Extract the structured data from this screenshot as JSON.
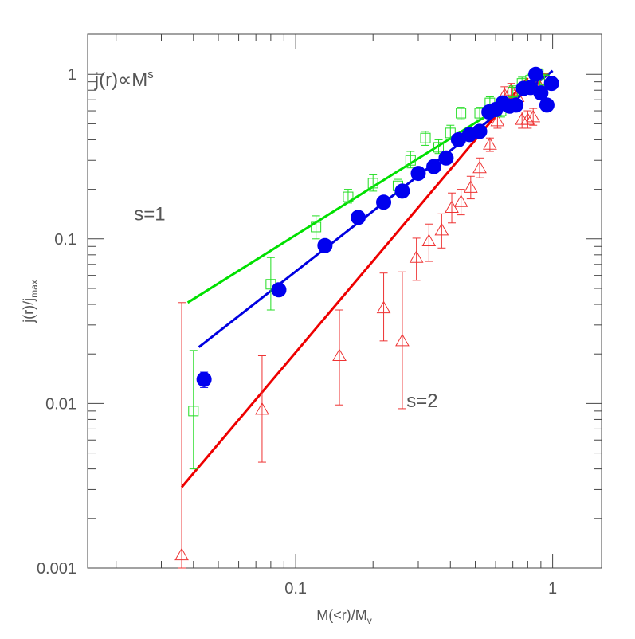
{
  "chart_data": {
    "type": "scatter",
    "xscale": "log",
    "yscale": "log",
    "xlim": [
      0.0155,
      1.55
    ],
    "ylim": [
      0.001,
      1.75
    ],
    "xlabel": {
      "main": "M(<r)/M",
      "sub": "v"
    },
    "ylabel": {
      "main": "j(r)/j",
      "sub": "max"
    },
    "x_tick_labels": [
      {
        "value": 0.1,
        "label": "0.1"
      },
      {
        "value": 1,
        "label": "1"
      }
    ],
    "y_tick_labels": [
      {
        "value": 0.001,
        "label": "0.001"
      },
      {
        "value": 0.01,
        "label": "0.01"
      },
      {
        "value": 0.1,
        "label": "0.1"
      },
      {
        "value": 1,
        "label": "1"
      }
    ],
    "annotations": {
      "relation": {
        "main": "j(r)",
        "sym": "∝",
        "m": "M",
        "sup": "s",
        "x": 0.0165,
        "y": 0.85
      },
      "s1": {
        "text": "s=1",
        "x": 0.0235,
        "y": 0.13
      },
      "s2": {
        "text": "s=2",
        "x": 0.27,
        "y": 0.0095
      }
    },
    "fits": [
      {
        "color": "#00e000",
        "x": [
          0.038,
          0.9
        ],
        "y": [
          0.041,
          0.9
        ]
      },
      {
        "color": "#0000e0",
        "x": [
          0.042,
          1.0
        ],
        "y": [
          0.022,
          1.05
        ]
      },
      {
        "color": "#ee0000",
        "x": [
          0.036,
          0.8
        ],
        "y": [
          0.0031,
          0.95
        ]
      }
    ],
    "series": [
      {
        "marker": "circle-filled",
        "color": "#0000ee",
        "points": [
          {
            "x": 0.044,
            "y": 0.014,
            "lo": 0.0125,
            "hi": 0.0155
          },
          {
            "x": 0.086,
            "y": 0.049
          },
          {
            "x": 0.13,
            "y": 0.091
          },
          {
            "x": 0.175,
            "y": 0.135
          },
          {
            "x": 0.22,
            "y": 0.167
          },
          {
            "x": 0.26,
            "y": 0.195
          },
          {
            "x": 0.3,
            "y": 0.25
          },
          {
            "x": 0.345,
            "y": 0.275
          },
          {
            "x": 0.385,
            "y": 0.31
          },
          {
            "x": 0.43,
            "y": 0.4
          },
          {
            "x": 0.475,
            "y": 0.43
          },
          {
            "x": 0.52,
            "y": 0.45
          },
          {
            "x": 0.565,
            "y": 0.59
          },
          {
            "x": 0.6,
            "y": 0.61
          },
          {
            "x": 0.64,
            "y": 0.67
          },
          {
            "x": 0.68,
            "y": 0.64
          },
          {
            "x": 0.72,
            "y": 0.65
          },
          {
            "x": 0.77,
            "y": 0.82
          },
          {
            "x": 0.82,
            "y": 0.83
          },
          {
            "x": 0.86,
            "y": 1.0
          },
          {
            "x": 0.9,
            "y": 0.77
          },
          {
            "x": 0.95,
            "y": 0.65
          },
          {
            "x": 0.99,
            "y": 0.88
          }
        ]
      },
      {
        "marker": "square-open",
        "color": "#22dd22",
        "points": [
          {
            "x": 0.04,
            "y": 0.009,
            "lo": 0.004,
            "hi": 0.021
          },
          {
            "x": 0.08,
            "y": 0.053,
            "lo": 0.037,
            "hi": 0.077
          },
          {
            "x": 0.12,
            "y": 0.118,
            "lo": 0.1,
            "hi": 0.138
          },
          {
            "x": 0.16,
            "y": 0.18,
            "lo": 0.165,
            "hi": 0.2
          },
          {
            "x": 0.2,
            "y": 0.218,
            "lo": 0.195,
            "hi": 0.245
          },
          {
            "x": 0.25,
            "y": 0.21,
            "lo": 0.19,
            "hi": 0.23
          },
          {
            "x": 0.28,
            "y": 0.3,
            "lo": 0.27,
            "hi": 0.34
          },
          {
            "x": 0.32,
            "y": 0.41,
            "lo": 0.37,
            "hi": 0.45
          },
          {
            "x": 0.36,
            "y": 0.36,
            "lo": 0.33,
            "hi": 0.4
          },
          {
            "x": 0.4,
            "y": 0.44,
            "lo": 0.4,
            "hi": 0.49
          },
          {
            "x": 0.44,
            "y": 0.58,
            "lo": 0.53,
            "hi": 0.63
          },
          {
            "x": 0.52,
            "y": 0.58,
            "lo": 0.53,
            "hi": 0.63
          },
          {
            "x": 0.57,
            "y": 0.67,
            "lo": 0.6,
            "hi": 0.73
          },
          {
            "x": 0.63,
            "y": 0.6,
            "lo": 0.55,
            "hi": 0.66
          },
          {
            "x": 0.7,
            "y": 0.78,
            "lo": 0.72,
            "hi": 0.85
          },
          {
            "x": 0.76,
            "y": 0.88,
            "lo": 0.8,
            "hi": 0.96
          },
          {
            "x": 0.82,
            "y": 0.92,
            "lo": 0.84,
            "hi": 1.0
          },
          {
            "x": 0.88,
            "y": 1.0,
            "lo": 0.92,
            "hi": 1.08
          },
          {
            "x": 0.93,
            "y": 0.92,
            "lo": 0.85,
            "hi": 1.0
          }
        ]
      },
      {
        "marker": "triangle-open",
        "color": "#ee3333",
        "points": [
          {
            "x": 0.036,
            "y": 0.0012,
            "lo": 0.001,
            "hi": 0.041
          },
          {
            "x": 0.074,
            "y": 0.0092,
            "lo": 0.0044,
            "hi": 0.0195
          },
          {
            "x": 0.148,
            "y": 0.0195,
            "lo": 0.0098,
            "hi": 0.037
          },
          {
            "x": 0.22,
            "y": 0.038,
            "lo": 0.024,
            "hi": 0.062
          },
          {
            "x": 0.26,
            "y": 0.024,
            "lo": 0.0093,
            "hi": 0.063
          },
          {
            "x": 0.295,
            "y": 0.077,
            "lo": 0.056,
            "hi": 0.101
          },
          {
            "x": 0.33,
            "y": 0.097,
            "lo": 0.073,
            "hi": 0.123
          },
          {
            "x": 0.37,
            "y": 0.113,
            "lo": 0.088,
            "hi": 0.142
          },
          {
            "x": 0.405,
            "y": 0.155,
            "lo": 0.125,
            "hi": 0.19
          },
          {
            "x": 0.44,
            "y": 0.168,
            "lo": 0.14,
            "hi": 0.2
          },
          {
            "x": 0.48,
            "y": 0.205,
            "lo": 0.175,
            "hi": 0.24
          },
          {
            "x": 0.52,
            "y": 0.27,
            "lo": 0.235,
            "hi": 0.31
          },
          {
            "x": 0.57,
            "y": 0.375,
            "lo": 0.34,
            "hi": 0.41
          },
          {
            "x": 0.61,
            "y": 0.52,
            "lo": 0.47,
            "hi": 0.58
          },
          {
            "x": 0.65,
            "y": 0.75,
            "lo": 0.68,
            "hi": 0.84
          },
          {
            "x": 0.69,
            "y": 0.8,
            "lo": 0.72,
            "hi": 0.88
          },
          {
            "x": 0.73,
            "y": 0.73,
            "lo": 0.66,
            "hi": 0.8
          },
          {
            "x": 0.76,
            "y": 0.53,
            "lo": 0.47,
            "hi": 0.59
          },
          {
            "x": 0.8,
            "y": 0.53,
            "lo": 0.47,
            "hi": 0.6
          },
          {
            "x": 0.84,
            "y": 0.55,
            "lo": 0.49,
            "hi": 0.62
          },
          {
            "x": 0.88,
            "y": 0.87,
            "lo": 0.79,
            "hi": 0.95
          },
          {
            "x": 0.93,
            "y": 0.93,
            "lo": 0.85,
            "hi": 1.01
          }
        ]
      }
    ]
  }
}
